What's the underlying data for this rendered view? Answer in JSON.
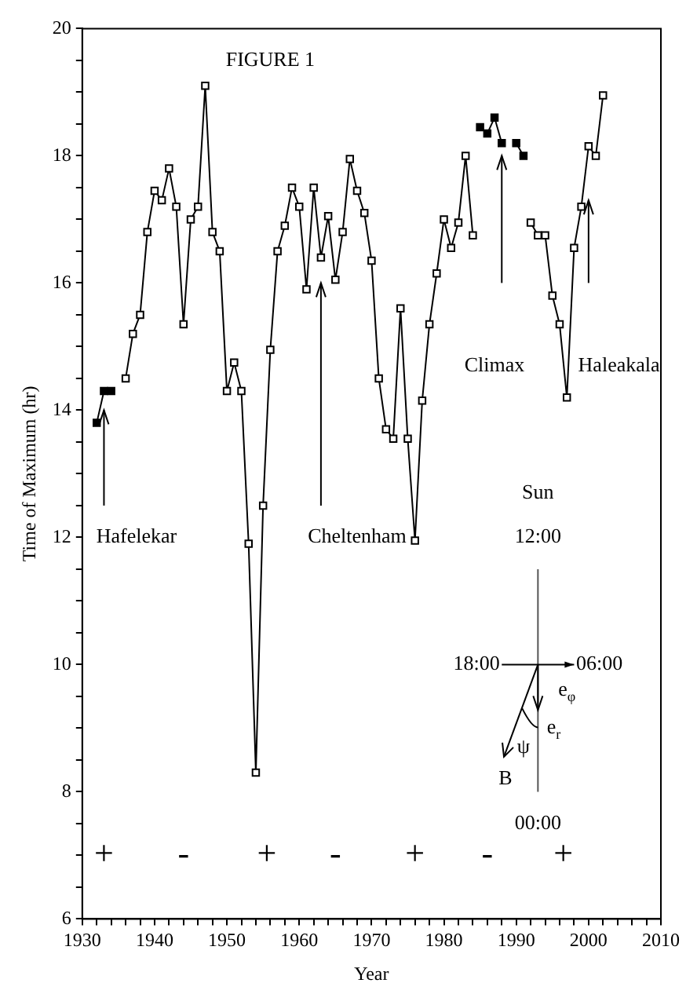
{
  "chart_data": {
    "type": "line",
    "xlabel": "Year",
    "ylabel": "Time of Maximum (hr)",
    "xlim": [
      1930,
      2010
    ],
    "ylim": [
      6,
      20
    ],
    "xticks": [
      1930,
      {
        "value": 1932,
        "label": null
      },
      {
        "value": 1934,
        "label": null
      },
      {
        "value": 1936,
        "label": null
      },
      {
        "value": 1938,
        "label": null
      },
      1940,
      {
        "value": 1942,
        "label": null
      },
      {
        "value": 1944,
        "label": null
      },
      {
        "value": 1946,
        "label": null
      },
      {
        "value": 1948,
        "label": null
      },
      1950,
      {
        "value": 1952,
        "label": null
      },
      {
        "value": 1954,
        "label": null
      },
      {
        "value": 1956,
        "label": null
      },
      {
        "value": 1958,
        "label": null
      },
      1960,
      {
        "value": 1962,
        "label": null
      },
      {
        "value": 1964,
        "label": null
      },
      {
        "value": 1966,
        "label": null
      },
      {
        "value": 1968,
        "label": null
      },
      1970,
      {
        "value": 1972,
        "label": null
      },
      {
        "value": 1974,
        "label": null
      },
      {
        "value": 1976,
        "label": null
      },
      {
        "value": 1978,
        "label": null
      },
      1980,
      {
        "value": 1982,
        "label": null
      },
      {
        "value": 1984,
        "label": null
      },
      {
        "value": 1986,
        "label": null
      },
      {
        "value": 1988,
        "label": null
      },
      1990,
      {
        "value": 1992,
        "label": null
      },
      {
        "value": 1994,
        "label": null
      },
      {
        "value": 1996,
        "label": null
      },
      {
        "value": 1998,
        "label": null
      },
      2000,
      {
        "value": 2002,
        "label": null
      },
      {
        "value": 2004,
        "label": null
      },
      {
        "value": 2006,
        "label": null
      },
      {
        "value": 2008,
        "label": null
      },
      2010
    ],
    "yticks": [
      6,
      {
        "value": 6.5,
        "label": null
      },
      {
        "value": 7,
        "label": null
      },
      {
        "value": 7.5,
        "label": null
      },
      8,
      {
        "value": 8.5,
        "label": null
      },
      {
        "value": 9,
        "label": null
      },
      {
        "value": 9.5,
        "label": null
      },
      10,
      {
        "value": 10.5,
        "label": null
      },
      {
        "value": 11,
        "label": null
      },
      {
        "value": 11.5,
        "label": null
      },
      12,
      {
        "value": 12.5,
        "label": null
      },
      {
        "value": 13,
        "label": null
      },
      {
        "value": 13.5,
        "label": null
      },
      14,
      {
        "value": 14.5,
        "label": null
      },
      {
        "value": 15,
        "label": null
      },
      {
        "value": 15.5,
        "label": null
      },
      16,
      {
        "value": 16.5,
        "label": null
      },
      {
        "value": 17,
        "label": null
      },
      {
        "value": 17.5,
        "label": null
      },
      18,
      {
        "value": 18.5,
        "label": null
      },
      {
        "value": 19,
        "label": null
      },
      {
        "value": 19.5,
        "label": null
      },
      20
    ],
    "grid": false,
    "legend": false,
    "marker": "square",
    "line_style": "solid",
    "series": [
      {
        "color": "#000000",
        "x": [
          1932,
          1933,
          1934
        ],
        "values": [
          13.8,
          14.3,
          14.3
        ]
      },
      {
        "color": "#000000",
        "x": [
          1936,
          1937,
          1938,
          1939,
          1940,
          1941,
          1942,
          1943,
          1944,
          1945,
          1946,
          1947,
          1948,
          1949,
          1950,
          1951,
          1952,
          1953,
          1954,
          1955,
          1956,
          1957,
          1958,
          1959,
          1960,
          1961,
          1962,
          1963,
          1964,
          1965,
          1966,
          1967,
          1968,
          1969,
          1970,
          1971,
          1972,
          1973,
          1974,
          1975,
          1976,
          1977,
          1978,
          1979,
          1980,
          1981,
          1982,
          1983,
          1984,
          1988,
          1992,
          1993,
          1994,
          1995,
          1996,
          1997,
          1998,
          1999,
          2000,
          2001,
          2002
        ],
        "values": [
          14.5,
          15.2,
          15.5,
          16.8,
          17.45,
          17.3,
          17.8,
          17.2,
          15.35,
          17.0,
          17.2,
          19.1,
          16.8,
          16.5,
          14.3,
          14.75,
          14.3,
          11.9,
          8.3,
          12.5,
          14.95,
          16.5,
          16.9,
          17.5,
          17.2,
          15.9,
          17.5,
          16.4,
          17.05,
          16.05,
          16.8,
          17.95,
          17.45,
          17.1,
          16.35,
          14.5,
          13.7,
          13.55,
          15.6,
          13.55,
          11.95,
          14.15,
          15.35,
          16.15,
          17.0,
          16.55,
          16.95,
          18.0,
          16.75,
          null,
          16.95,
          16.75,
          16.75,
          15.8,
          15.35,
          14.2,
          16.55,
          17.2,
          18.15,
          18.0,
          18.95
        ]
      },
      {
        "color": "#000000",
        "x": [
          1985,
          1986,
          1987,
          1988,
          1989,
          1990,
          1991
        ],
        "values": [
          18.45,
          18.35,
          18.6,
          18.2,
          null,
          18.2,
          18.0
        ]
      }
    ],
    "annotations": [
      "FIGURE 1",
      {
        "text": "Hafelekar",
        "x": 1933,
        "y": 14.0
      },
      "Cheltenham",
      "Climax",
      "Haleakala",
      "Sun",
      "12:00",
      "18:00",
      "06:00",
      "e$_{φ}$",
      "e$_{r}$",
      "ψ",
      "B",
      "00:00",
      "+",
      "-",
      "+",
      "-",
      "+",
      "-",
      "+"
    ]
  }
}
